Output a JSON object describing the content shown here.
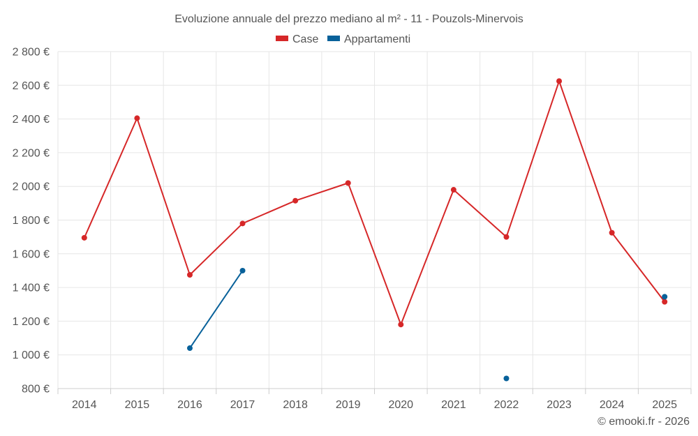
{
  "chart_data": {
    "type": "line",
    "title": "Evoluzione annuale del prezzo mediano al m² - 11 - Pouzols-Minervois",
    "categories": [
      "2014",
      "2015",
      "2016",
      "2017",
      "2018",
      "2019",
      "2020",
      "2021",
      "2022",
      "2023",
      "2024",
      "2025"
    ],
    "series": [
      {
        "name": "Case",
        "color": "#d62728",
        "values": [
          1695,
          2405,
          1475,
          1780,
          1915,
          2020,
          1180,
          1980,
          1700,
          2625,
          1725,
          1315
        ]
      },
      {
        "name": "Appartamenti",
        "color": "#08619a",
        "values": [
          null,
          null,
          1040,
          1500,
          null,
          null,
          null,
          null,
          860,
          null,
          null,
          1345
        ]
      }
    ],
    "y_ticks": [
      800,
      1000,
      1200,
      1400,
      1600,
      1800,
      2000,
      2200,
      2400,
      2600,
      2800
    ],
    "y_tick_labels": [
      "800 €",
      "1 000 €",
      "1 200 €",
      "1 400 €",
      "1 600 €",
      "1 800 €",
      "2 000 €",
      "2 200 €",
      "2 400 €",
      "2 600 €",
      "2 800 €"
    ],
    "ylim": [
      800,
      2800
    ],
    "xlabel": "",
    "ylabel": "",
    "grid": true,
    "legend_position": "top-center"
  },
  "credit": "© emooki.fr - 2026"
}
